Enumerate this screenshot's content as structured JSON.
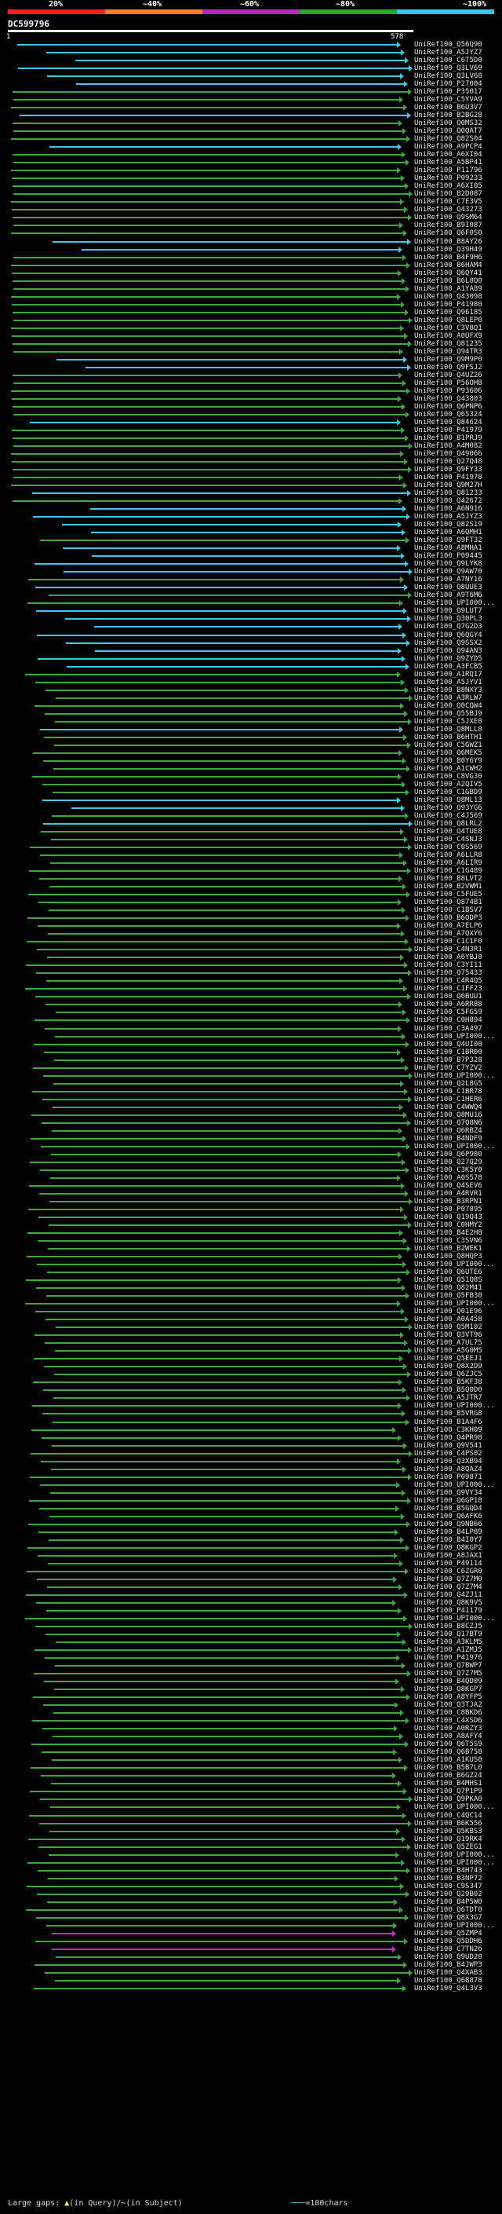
{
  "legend": {
    "labels": [
      "20%",
      "~40%",
      "~60%",
      "~80%",
      "~100%"
    ],
    "colors": [
      "#ff1e1e",
      "#ff7f1e",
      "#b02cb8",
      "#22aa22",
      "#32c8e6"
    ]
  },
  "query": {
    "id": "DC599796",
    "start": "1",
    "end": "578"
  },
  "footer": {
    "large_gaps": "Large gaps: ",
    "in_query": "(in Query)",
    "in_subject": "(in Subject)",
    "scale": "=100chars"
  },
  "hits": [
    {
      "label": "UniRef100_Q56Q90",
      "color": "cyan"
    },
    {
      "label": "UniRef100_A5JYZ7",
      "color": "cyan"
    },
    {
      "label": "UniRef100_C6T5D0",
      "color": "cyan"
    },
    {
      "label": "UniRef100_Q3LV69",
      "color": "cyan"
    },
    {
      "label": "UniRef100_Q3LV68",
      "color": "cyan"
    },
    {
      "label": "UniRef100_P27004",
      "color": "cyan"
    },
    {
      "label": "UniRef100_P35017",
      "color": "green"
    },
    {
      "label": "UniRef100_C5YVA9",
      "color": "green"
    },
    {
      "label": "UniRef100_B6U3V7",
      "color": "green"
    },
    {
      "label": "UniRef100_B2BG28",
      "color": "cyan"
    },
    {
      "label": "UniRef100_Q0MS32",
      "color": "green"
    },
    {
      "label": "UniRef100_Q0QAT7",
      "color": "green"
    },
    {
      "label": "UniRef100_Q82S04",
      "color": "green"
    },
    {
      "label": "UniRef100_A9PCP4",
      "color": "cyan"
    },
    {
      "label": "UniRef100_A6XI04",
      "color": "green"
    },
    {
      "label": "UniRef100_A5BP41",
      "color": "green"
    },
    {
      "label": "UniRef100_P11796",
      "color": "green"
    },
    {
      "label": "UniRef100_P09233",
      "color": "green"
    },
    {
      "label": "UniRef100_A6XI05",
      "color": "green"
    },
    {
      "label": "UniRef100_B2D087",
      "color": "green"
    },
    {
      "label": "UniRef100_C7E3V5",
      "color": "green"
    },
    {
      "label": "UniRef100_Q43273",
      "color": "green"
    },
    {
      "label": "UniRef100_Q9SM64",
      "color": "green"
    },
    {
      "label": "UniRef100_B9I087",
      "color": "green"
    },
    {
      "label": "UniRef100_Q6F0S0",
      "color": "green"
    },
    {
      "label": "UniRef100_B8AY26",
      "color": "cyan"
    },
    {
      "label": "UniRef100_Q39H49",
      "color": "cyan"
    },
    {
      "label": "UniRef100_B4F9H6",
      "color": "green"
    },
    {
      "label": "UniRef100_B6HAM4",
      "color": "green"
    },
    {
      "label": "UniRef100_Q6QY41",
      "color": "green"
    },
    {
      "label": "UniRef100_B6L8Q0",
      "color": "green"
    },
    {
      "label": "UniRef100_A1YA89",
      "color": "green"
    },
    {
      "label": "UniRef100_Q43098",
      "color": "green"
    },
    {
      "label": "UniRef100_P41980",
      "color": "green"
    },
    {
      "label": "UniRef100_Q96185",
      "color": "green"
    },
    {
      "label": "UniRef100_Q8LEP0",
      "color": "green"
    },
    {
      "label": "UniRef100_C3V8Q1",
      "color": "green"
    },
    {
      "label": "UniRef100_A0UFX9",
      "color": "green"
    },
    {
      "label": "UniRef100_Q81235",
      "color": "green"
    },
    {
      "label": "UniRef100_Q94TR3",
      "color": "green"
    },
    {
      "label": "UniRef100_Q9M9P0",
      "color": "cyan"
    },
    {
      "label": "UniRef100_Q9FSJ2",
      "color": "cyan"
    },
    {
      "label": "UniRef100_Q4UZ26",
      "color": "green"
    },
    {
      "label": "UniRef100_P56OH8",
      "color": "green"
    },
    {
      "label": "UniRef100_P93606",
      "color": "green"
    },
    {
      "label": "UniRef100_Q43803",
      "color": "green"
    },
    {
      "label": "UniRef100_Q6PNP6",
      "color": "green"
    },
    {
      "label": "UniRef100_Q65324",
      "color": "green"
    },
    {
      "label": "UniRef100_Q84624",
      "color": "cyan"
    },
    {
      "label": "UniRef100_P41979",
      "color": "green"
    },
    {
      "label": "UniRef100_B1PRJ9",
      "color": "green"
    },
    {
      "label": "UniRef100_A4M082",
      "color": "green"
    },
    {
      "label": "UniRef100_Q49066",
      "color": "green"
    },
    {
      "label": "UniRef100_Q27Q48",
      "color": "green"
    },
    {
      "label": "UniRef100_Q9FY33",
      "color": "green"
    },
    {
      "label": "UniRef100_P41978",
      "color": "green"
    },
    {
      "label": "UniRef100_Q9M27H",
      "color": "green"
    },
    {
      "label": "UniRef100_Q81233",
      "color": "cyan"
    },
    {
      "label": "UniRef100_Q42672",
      "color": "green"
    },
    {
      "label": "UniRef100_A6N916",
      "color": "cyan"
    },
    {
      "label": "UniRef100_A5JYZ3",
      "color": "cyan"
    },
    {
      "label": "UniRef100_Q82S19",
      "color": "cyan"
    },
    {
      "label": "UniRef100_A6QMH1",
      "color": "cyan"
    },
    {
      "label": "UniRef100_Q9FT32",
      "color": "green"
    },
    {
      "label": "UniRef100_A8MHA1",
      "color": "cyan"
    },
    {
      "label": "UniRef100_P09445",
      "color": "cyan"
    },
    {
      "label": "UniRef100_Q9LYK8",
      "color": "cyan"
    },
    {
      "label": "UniRef100_Q9AW70",
      "color": "cyan"
    },
    {
      "label": "UniRef100_A7NY16",
      "color": "green"
    },
    {
      "label": "UniRef100_Q8UUE3",
      "color": "cyan"
    },
    {
      "label": "UniRef100_A9T6M6",
      "color": "green"
    },
    {
      "label": "UniRef100_UPI000...",
      "color": "green"
    },
    {
      "label": "UniRef100_Q9LUT7",
      "color": "cyan"
    },
    {
      "label": "UniRef100_Q30PL3",
      "color": "cyan"
    },
    {
      "label": "UniRef100_Q7G2D3",
      "color": "cyan"
    },
    {
      "label": "UniRef100_Q6QGY4",
      "color": "cyan"
    },
    {
      "label": "UniRef100_Q9SSX2",
      "color": "cyan"
    },
    {
      "label": "UniRef100_Q94AN3",
      "color": "cyan"
    },
    {
      "label": "UniRef100_Q9ZYD5",
      "color": "cyan"
    },
    {
      "label": "UniRef100_A3FCB5",
      "color": "cyan"
    },
    {
      "label": "UniRef100_A1RQ17",
      "color": "green"
    },
    {
      "label": "UniRef100_A5JYV1",
      "color": "green"
    },
    {
      "label": "UniRef100_B8NXY3",
      "color": "green"
    },
    {
      "label": "UniRef100_A3RLW7",
      "color": "green"
    },
    {
      "label": "UniRef100_Q0CQW4",
      "color": "green"
    },
    {
      "label": "UniRef100_Q55BJ9",
      "color": "green"
    },
    {
      "label": "UniRef100_C5JXE0",
      "color": "green"
    },
    {
      "label": "UniRef100_Q8MLL8",
      "color": "cyan"
    },
    {
      "label": "UniRef100_B6HTH1",
      "color": "green"
    },
    {
      "label": "UniRef100_C5GWZ1",
      "color": "green"
    },
    {
      "label": "UniRef100_Q6MEK5",
      "color": "green"
    },
    {
      "label": "UniRef100_B0Y6Y9",
      "color": "green"
    },
    {
      "label": "UniRef100_A1CWH2",
      "color": "green"
    },
    {
      "label": "UniRef100_C8VG30",
      "color": "green"
    },
    {
      "label": "UniRef100_A2QIV5",
      "color": "green"
    },
    {
      "label": "UniRef100_C1GBD9",
      "color": "green"
    },
    {
      "label": "UniRef100_Q8ML13",
      "color": "cyan"
    },
    {
      "label": "UniRef100_Q93YG6",
      "color": "cyan"
    },
    {
      "label": "UniRef100_C4J569",
      "color": "green"
    },
    {
      "label": "UniRef100_Q8LRL2",
      "color": "cyan"
    },
    {
      "label": "UniRef100_Q4TUE8",
      "color": "green"
    },
    {
      "label": "UniRef100_C4SNJ3",
      "color": "green"
    },
    {
      "label": "UniRef100_C0S569",
      "color": "green"
    },
    {
      "label": "UniRef100_A6LLR8",
      "color": "green"
    },
    {
      "label": "UniRef100_A6LIR9",
      "color": "green"
    },
    {
      "label": "UniRef100_C1G489",
      "color": "green"
    },
    {
      "label": "UniRef100_B8LVT2",
      "color": "green"
    },
    {
      "label": "UniRef100_B2VWM1",
      "color": "green"
    },
    {
      "label": "UniRef100_C5FUE5",
      "color": "green"
    },
    {
      "label": "UniRef100_Q874B1",
      "color": "green"
    },
    {
      "label": "UniRef100_C1BSV7",
      "color": "green"
    },
    {
      "label": "UniRef100_B6QDP3",
      "color": "green"
    },
    {
      "label": "UniRef100_A7ELP6",
      "color": "green"
    },
    {
      "label": "UniRef100_A7QXY6",
      "color": "green"
    },
    {
      "label": "UniRef100_C1C1F0",
      "color": "green"
    },
    {
      "label": "UniRef100_C4N3R1",
      "color": "green"
    },
    {
      "label": "UniRef100_A6YBJ0",
      "color": "green"
    },
    {
      "label": "UniRef100_C3YI11",
      "color": "green"
    },
    {
      "label": "UniRef100_Q75433",
      "color": "green"
    },
    {
      "label": "UniRef100_C4R4Q5",
      "color": "green"
    },
    {
      "label": "UniRef100_C1FF23",
      "color": "green"
    },
    {
      "label": "UniRef100_Q6BUU1",
      "color": "green"
    },
    {
      "label": "UniRef100_A6RR88",
      "color": "green"
    },
    {
      "label": "UniRef100_C5FG59",
      "color": "green"
    },
    {
      "label": "UniRef100_C0H894",
      "color": "green"
    },
    {
      "label": "UniRef100_C3A497",
      "color": "green"
    },
    {
      "label": "UniRef100_UPI000...",
      "color": "green"
    },
    {
      "label": "UniRef100_Q4UI00",
      "color": "green"
    },
    {
      "label": "UniRef100_C1BR00",
      "color": "green"
    },
    {
      "label": "UniRef100_B7P328",
      "color": "green"
    },
    {
      "label": "UniRef100_C7YZV2",
      "color": "green"
    },
    {
      "label": "UniRef100_UPI000...",
      "color": "green"
    },
    {
      "label": "UniRef100_Q2L8G5",
      "color": "green"
    },
    {
      "label": "UniRef100_C1BR78",
      "color": "green"
    },
    {
      "label": "UniRef100_C1HER6",
      "color": "green"
    },
    {
      "label": "UniRef100_C4WWQ4",
      "color": "green"
    },
    {
      "label": "UniRef100_Q8MU16",
      "color": "green"
    },
    {
      "label": "UniRef100_Q7Q8N6",
      "color": "green"
    },
    {
      "label": "UniRef100_Q6RBZ4",
      "color": "green"
    },
    {
      "label": "UniRef100_B4NDF9",
      "color": "green"
    },
    {
      "label": "UniRef100_UPI000...",
      "color": "green"
    },
    {
      "label": "UniRef100_Q6P980",
      "color": "green"
    },
    {
      "label": "UniRef100_Q27Q29",
      "color": "green"
    },
    {
      "label": "UniRef100_C3K5Y0",
      "color": "green"
    },
    {
      "label": "UniRef100_A0S578",
      "color": "green"
    },
    {
      "label": "UniRef100_Q4SEV6",
      "color": "green"
    },
    {
      "label": "UniRef100_A4RVR1",
      "color": "green"
    },
    {
      "label": "UniRef100_B3RPN1",
      "color": "green"
    },
    {
      "label": "UniRef100_P07895",
      "color": "green"
    },
    {
      "label": "UniRef100_Q19Q43",
      "color": "green"
    },
    {
      "label": "UniRef100_C0HMY2",
      "color": "green"
    },
    {
      "label": "UniRef100_B4E2H8",
      "color": "green"
    },
    {
      "label": "UniRef100_C3SVN6",
      "color": "green"
    },
    {
      "label": "UniRef100_B2WEK1",
      "color": "green"
    },
    {
      "label": "UniRef100_Q8HQP3",
      "color": "green"
    },
    {
      "label": "UniRef100_UPI000...",
      "color": "green"
    },
    {
      "label": "UniRef100_Q6UTE6",
      "color": "green"
    },
    {
      "label": "UniRef100_Q51Q8S",
      "color": "green"
    },
    {
      "label": "UniRef100_Q82M41",
      "color": "green"
    },
    {
      "label": "UniRef100_Q5FB30",
      "color": "green"
    },
    {
      "label": "UniRef100_UPI000...",
      "color": "green"
    },
    {
      "label": "UniRef100_Q01E96",
      "color": "green"
    },
    {
      "label": "UniRef100_A0A458",
      "color": "green"
    },
    {
      "label": "UniRef100_Q5M102",
      "color": "green"
    },
    {
      "label": "UniRef100_Q3VT96",
      "color": "green"
    },
    {
      "label": "UniRef100_A7UL75",
      "color": "green"
    },
    {
      "label": "UniRef100_A5G0M5",
      "color": "green"
    },
    {
      "label": "UniRef100_Q5EEJ1",
      "color": "green"
    },
    {
      "label": "UniRef100_Q8X2D9",
      "color": "green"
    },
    {
      "label": "UniRef100_Q6ZJC5",
      "color": "green"
    },
    {
      "label": "UniRef100_B5KF38",
      "color": "green"
    },
    {
      "label": "UniRef100_B5Q0D0",
      "color": "green"
    },
    {
      "label": "UniRef100_A5JTR7",
      "color": "green"
    },
    {
      "label": "UniRef100_UPI000...",
      "color": "green"
    },
    {
      "label": "UniRef100_B5VRG8",
      "color": "green"
    },
    {
      "label": "UniRef100_B1A4F6",
      "color": "green"
    },
    {
      "label": "UniRef100_C3KH09",
      "color": "green"
    },
    {
      "label": "UniRef100_Q4PR98",
      "color": "green"
    },
    {
      "label": "UniRef100_Q9V541",
      "color": "green"
    },
    {
      "label": "UniRef100_C4PS02",
      "color": "green"
    },
    {
      "label": "UniRef100_Q3XB94",
      "color": "green"
    },
    {
      "label": "UniRef100_A8QAZ4",
      "color": "green"
    },
    {
      "label": "UniRef100_P09871",
      "color": "green"
    },
    {
      "label": "UniRef100_UPI000...",
      "color": "green"
    },
    {
      "label": "UniRef100_Q9VY34",
      "color": "green"
    },
    {
      "label": "UniRef100_Q6GP18",
      "color": "green"
    },
    {
      "label": "UniRef100_B5GQD4",
      "color": "green"
    },
    {
      "label": "UniRef100_Q6AFK6",
      "color": "green"
    },
    {
      "label": "UniRef100_Q9NB66",
      "color": "green"
    },
    {
      "label": "UniRef100_B4LP89",
      "color": "green"
    },
    {
      "label": "UniRef100_B4I0Y7",
      "color": "green"
    },
    {
      "label": "UniRef100_Q8KGP2",
      "color": "green"
    },
    {
      "label": "UniRef100_A8JAX1",
      "color": "green"
    },
    {
      "label": "UniRef100_P49114",
      "color": "green"
    },
    {
      "label": "UniRef100_C6ZGR0",
      "color": "green"
    },
    {
      "label": "UniRef100_Q7Z7M0",
      "color": "green"
    },
    {
      "label": "UniRef100_Q7Z7M4",
      "color": "green"
    },
    {
      "label": "UniRef100_Q4ZJ11",
      "color": "green"
    },
    {
      "label": "UniRef100_Q8K9V5",
      "color": "green"
    },
    {
      "label": "UniRef100_P41179",
      "color": "green"
    },
    {
      "label": "UniRef100_UPI000...",
      "color": "green"
    },
    {
      "label": "UniRef100_B8CZJ5",
      "color": "green"
    },
    {
      "label": "UniRef100_Q17BT9",
      "color": "green"
    },
    {
      "label": "UniRef100_A3KLM5",
      "color": "green"
    },
    {
      "label": "UniRef100_A1ZMJ5",
      "color": "green"
    },
    {
      "label": "UniRef100_P41976",
      "color": "green"
    },
    {
      "label": "UniRef100_Q7BWP7",
      "color": "green"
    },
    {
      "label": "UniRef100_Q7Z7M5",
      "color": "green"
    },
    {
      "label": "UniRef100_B4QD09",
      "color": "green"
    },
    {
      "label": "UniRef100_Q8KGP7",
      "color": "green"
    },
    {
      "label": "UniRef100_A8YFP5",
      "color": "green"
    },
    {
      "label": "UniRef100_Q3TJA2",
      "color": "green"
    },
    {
      "label": "UniRef100_C8BKD6",
      "color": "green"
    },
    {
      "label": "UniRef100_C4XSD6",
      "color": "green"
    },
    {
      "label": "UniRef100_A0RZY3",
      "color": "green"
    },
    {
      "label": "UniRef100_A8AFY4",
      "color": "green"
    },
    {
      "label": "UniRef100_Q6T5S9",
      "color": "green"
    },
    {
      "label": "UniRef100_Q6B758",
      "color": "green"
    },
    {
      "label": "UniRef100_A1KUS0",
      "color": "green"
    },
    {
      "label": "UniRef100_B5B7L0",
      "color": "green"
    },
    {
      "label": "UniRef100_B6GZ24",
      "color": "green"
    },
    {
      "label": "UniRef100_B4MHS1",
      "color": "green"
    },
    {
      "label": "UniRef100_Q7P1P9",
      "color": "green"
    },
    {
      "label": "UniRef100_Q9PKA0",
      "color": "green"
    },
    {
      "label": "UniRef100_UPI000...",
      "color": "green"
    },
    {
      "label": "UniRef100_C4QC14",
      "color": "green"
    },
    {
      "label": "UniRef100_B6K556",
      "color": "green"
    },
    {
      "label": "UniRef100_Q5KBS3",
      "color": "green"
    },
    {
      "label": "UniRef100_Q19RK4",
      "color": "green"
    },
    {
      "label": "UniRef100_Q5ZEG1",
      "color": "green"
    },
    {
      "label": "UniRef100_UPI000...",
      "color": "green"
    },
    {
      "label": "UniRef100_UPI000...",
      "color": "green"
    },
    {
      "label": "UniRef100_B4H743",
      "color": "green"
    },
    {
      "label": "UniRef100_B3NP72",
      "color": "green"
    },
    {
      "label": "UniRef100_C9S347",
      "color": "green"
    },
    {
      "label": "UniRef100_Q29B02",
      "color": "green"
    },
    {
      "label": "UniRef100_B4P5W0",
      "color": "green"
    },
    {
      "label": "UniRef100_Q6TDT0",
      "color": "green"
    },
    {
      "label": "UniRef100_Q8X3G7",
      "color": "green"
    },
    {
      "label": "UniRef100_UPI000...",
      "color": "green"
    },
    {
      "label": "UniRef100_Q5ZMP4",
      "color": "magenta"
    },
    {
      "label": "UniRef100_Q5DDH6",
      "color": "green"
    },
    {
      "label": "UniRef100_C7TN26",
      "color": "magenta"
    },
    {
      "label": "UniRef100_Q9UD20",
      "color": "green"
    },
    {
      "label": "UniRef100_B4JWP3",
      "color": "green"
    },
    {
      "label": "UniRef100_Q4XAB3",
      "color": "green"
    },
    {
      "label": "UniRef100_Q6B878",
      "color": "green"
    },
    {
      "label": "UniRef100_Q4L3V3",
      "color": "green"
    }
  ]
}
